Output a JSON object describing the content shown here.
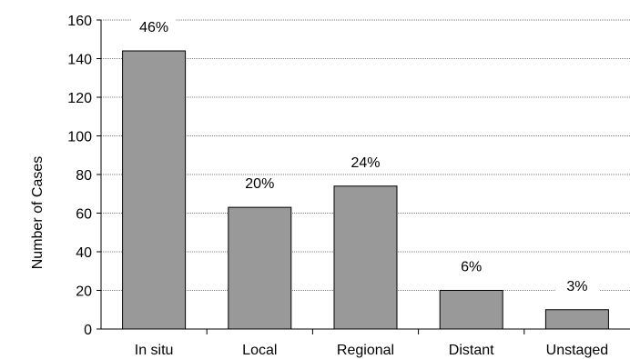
{
  "chart_data": {
    "type": "bar",
    "categories": [
      "In situ",
      "Local",
      "Regional",
      "Distant",
      "Unstaged"
    ],
    "values": [
      144,
      63,
      74,
      20,
      10
    ],
    "data_labels": [
      "46%",
      "20%",
      "24%",
      "6%",
      "3%"
    ],
    "title": "",
    "xlabel": "",
    "ylabel": "Number of Cases",
    "ylim": [
      0,
      160
    ],
    "yticks": [
      0,
      20,
      40,
      60,
      80,
      100,
      120,
      140,
      160
    ],
    "grid": "horizontal dotted",
    "legend": "none",
    "colors": {
      "bar_fill": "#999999",
      "bar_stroke": "#000000",
      "grid": "#7f7f7f",
      "axis": "#000000"
    }
  }
}
